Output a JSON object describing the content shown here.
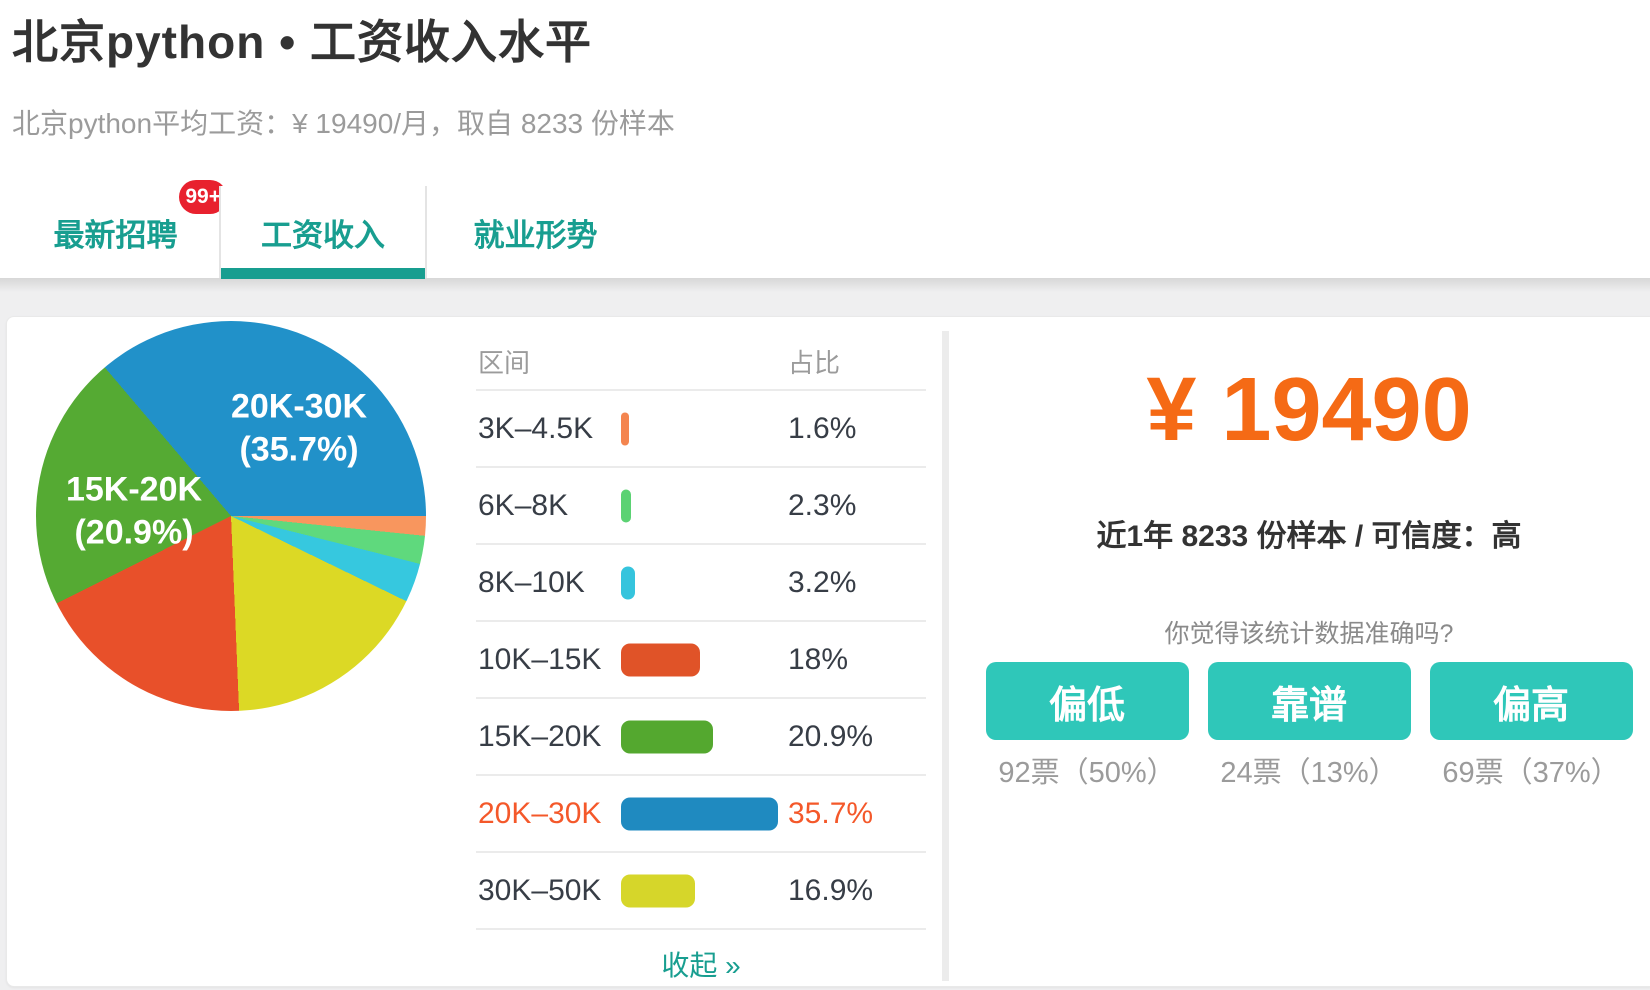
{
  "page": {
    "title": "北京python • 工资收入水平",
    "subtitle": "北京python平均工资：¥ 19490/月，取自 8233 份样本"
  },
  "colors": {
    "teal": "#189e90",
    "button_teal": "#2fc7b9",
    "orange": "#f56a15",
    "highlight_orange": "#f4582a",
    "badge_red": "#e8212e"
  },
  "tabs": [
    {
      "label": "最新招聘",
      "badge": "99+",
      "active": false
    },
    {
      "label": "工资收入",
      "active": true
    },
    {
      "label": "就业形势",
      "active": false
    }
  ],
  "chart_data": {
    "type": "pie",
    "unit": "%",
    "start_angle": "east",
    "direction": "clockwise",
    "slices": [
      {
        "label": "3K–4.5K",
        "pct": 1.6,
        "color": "#f8965e"
      },
      {
        "label": "6K–8K",
        "pct": 2.3,
        "color": "#5fd97d"
      },
      {
        "label": "8K–10K",
        "pct": 3.2,
        "color": "#36c8df"
      },
      {
        "label": "30K–50K",
        "pct": 16.9,
        "color": "#dcd925"
      },
      {
        "label": "10K–15K",
        "pct": 18,
        "color": "#e8502a"
      },
      {
        "label": "15K–20K",
        "pct": 20.9,
        "color": "#55aa33"
      },
      {
        "label": "20K–30K",
        "pct": 35.7,
        "color": "#2191c9"
      }
    ],
    "annotations": [
      {
        "line1": "20K-30K",
        "line2": "(35.7%)"
      },
      {
        "line1": "15K-20K",
        "line2": "(20.9%)"
      }
    ]
  },
  "salary_table": {
    "col_range": "区间",
    "col_share": "占比",
    "rows": [
      {
        "range": "3K–4.5K",
        "share": "1.6%",
        "value": 1.6,
        "bar_color": "#f4854f",
        "highlight": false
      },
      {
        "range": "6K–8K",
        "share": "2.3%",
        "value": 2.3,
        "bar_color": "#5bd273",
        "highlight": false
      },
      {
        "range": "8K–10K",
        "share": "3.2%",
        "value": 3.2,
        "bar_color": "#35c4dd",
        "highlight": false
      },
      {
        "range": "10K–15K",
        "share": "18%",
        "value": 18,
        "bar_color": "#e05328",
        "highlight": false
      },
      {
        "range": "15K–20K",
        "share": "20.9%",
        "value": 20.9,
        "bar_color": "#54a82f",
        "highlight": false
      },
      {
        "range": "20K–30K",
        "share": "35.7%",
        "value": 35.7,
        "bar_color": "#1f8ac0",
        "highlight": true
      },
      {
        "range": "30K–50K",
        "share": "16.9%",
        "value": 16.9,
        "bar_color": "#d6d62a",
        "highlight": false
      }
    ],
    "collapse_label": "收起 »"
  },
  "summary": {
    "amount": "¥ 19490",
    "sample_line": "近1年 8233 份样本 / 可信度：高",
    "question": "你觉得该统计数据准确吗?",
    "votes": [
      {
        "label": "偏低",
        "stat": "92票（50%）"
      },
      {
        "label": "靠谱",
        "stat": "24票（13%）"
      },
      {
        "label": "偏高",
        "stat": "69票（37%）"
      }
    ]
  }
}
